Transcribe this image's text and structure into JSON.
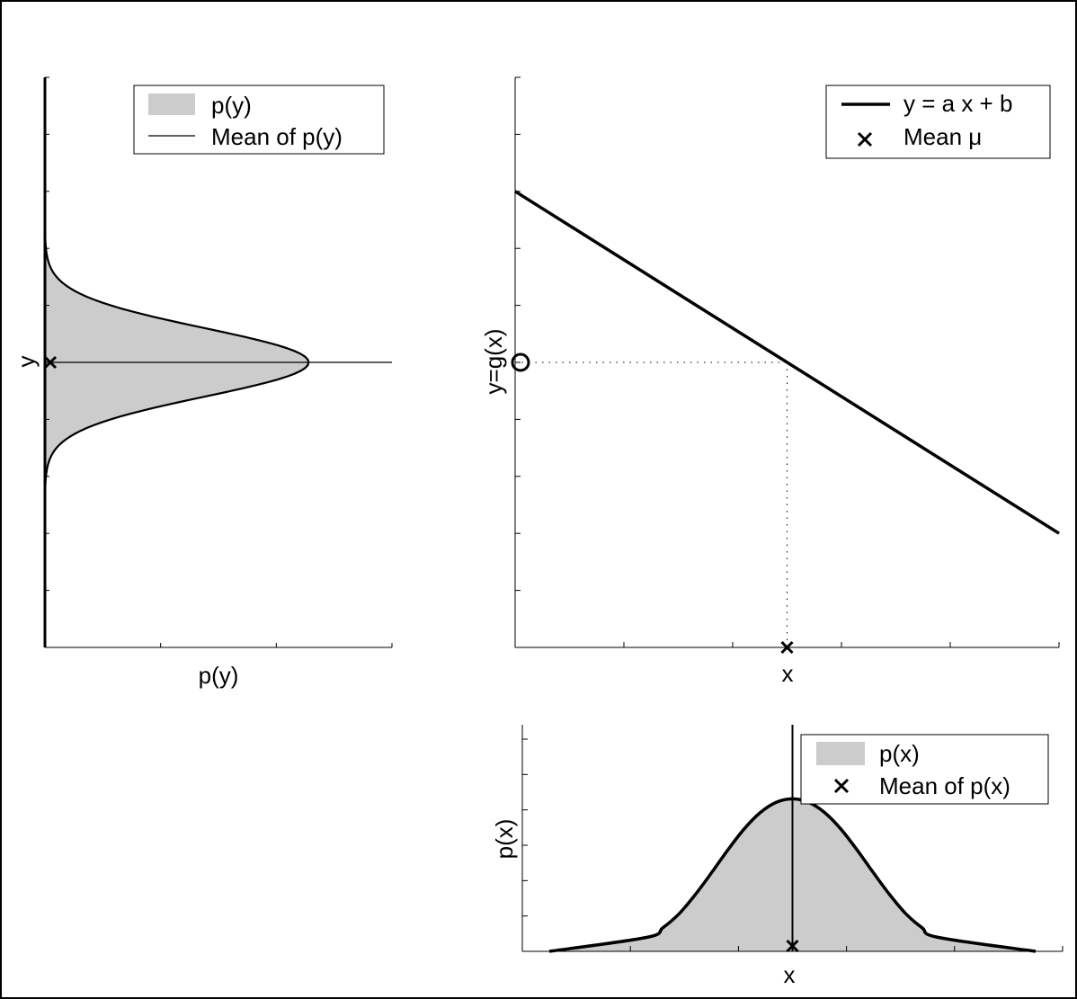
{
  "chart_data": [
    {
      "type": "area",
      "orientation": "horizontal",
      "xlabel": "p(y)",
      "ylabel": "y",
      "legend": {
        "placement": "top-right",
        "entries": [
          {
            "label": "p(y)",
            "marker": "filled-area"
          },
          {
            "label": "Mean of p(y)",
            "marker": "line"
          }
        ]
      },
      "series": [
        {
          "name": "p(y)",
          "mean": 0.0,
          "std": 0.6,
          "peak": 2.66,
          "y_range": [
            -5.0,
            5.0
          ]
        }
      ],
      "mean_line_y": 0.0,
      "xlim": [
        0,
        3.5
      ],
      "ylim": [
        -5,
        5
      ],
      "xticks_count": 4,
      "yticks_count": 11,
      "grid": false,
      "fill_color": "#cccccc"
    },
    {
      "type": "line",
      "xlabel": "x",
      "ylabel": "y=g(x)",
      "legend": {
        "placement": "top-right",
        "entries": [
          {
            "label": "y = a x + b",
            "marker": "line"
          },
          {
            "label": "Mean μ",
            "marker": "x"
          }
        ]
      },
      "series": [
        {
          "name": "y = a x + b",
          "x": [
            -5,
            5
          ],
          "y": [
            3,
            -3
          ]
        }
      ],
      "mean_mu": {
        "x": 0.0,
        "y": -5.0
      },
      "mapped_point": {
        "x": 0.0,
        "y": 0.0
      },
      "xlim": [
        -5,
        5
      ],
      "ylim": [
        -5,
        5
      ],
      "xticks_count": 6,
      "yticks_count": 11,
      "grid": false
    },
    {
      "type": "area",
      "xlabel": "x",
      "ylabel": "p(x)",
      "legend": {
        "placement": "top-right",
        "entries": [
          {
            "label": "p(x)",
            "marker": "filled-area"
          },
          {
            "label": "Mean of p(x)",
            "marker": "x"
          }
        ]
      },
      "series": [
        {
          "name": "p(x)",
          "x": [
            -4.5,
            -2.7,
            -2.4,
            -2.1,
            -1.8,
            -1.5,
            -1.2,
            -0.9,
            -0.6,
            -0.3,
            0.0,
            0.3,
            0.6,
            0.9,
            1.2,
            1.5,
            1.8,
            2.1,
            2.4,
            2.7,
            4.5
          ],
          "y": [
            0.0,
            0.016,
            0.027,
            0.043,
            0.065,
            0.09,
            0.116,
            0.14,
            0.159,
            0.171,
            0.175,
            0.171,
            0.159,
            0.14,
            0.116,
            0.09,
            0.065,
            0.043,
            0.027,
            0.016,
            0.0
          ]
        }
      ],
      "mean_x": 0.0,
      "xlim": [
        -5,
        5
      ],
      "ylim": [
        0,
        0.26
      ],
      "xticks_count": 6,
      "yticks_count": 7,
      "grid": false,
      "fill_color": "#cccccc"
    }
  ]
}
